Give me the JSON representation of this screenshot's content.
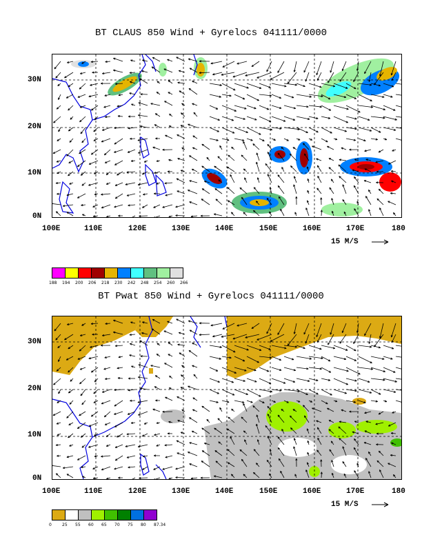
{
  "panel1": {
    "title": "BT CLAUS 850 Wind + Gyrelocs 041111/0000",
    "y_ticks": [
      "30N",
      "20N",
      "10N",
      "0N"
    ],
    "x_ticks": [
      "100E",
      "110E",
      "120E",
      "130E",
      "140E",
      "150E",
      "160E",
      "170E",
      "180"
    ],
    "scale_label": "15 M/S",
    "legend": {
      "colors": [
        "#ff00ff",
        "#ffff00",
        "#ff0000",
        "#a00000",
        "#e6b400",
        "#0080ff",
        "#40ffff",
        "#60c080",
        "#a0f0a0",
        "#e0e0e0"
      ],
      "labels": [
        "188",
        "194",
        "200",
        "206",
        "218",
        "230",
        "242",
        "248",
        "254",
        "260",
        "266"
      ]
    }
  },
  "panel2": {
    "title": "BT Pwat 850 Wind + Gyrelocs 041111/0000",
    "y_ticks": [
      "30N",
      "20N",
      "10N",
      "0N"
    ],
    "x_ticks": [
      "100E",
      "110E",
      "120E",
      "130E",
      "140E",
      "150E",
      "160E",
      "170E",
      "180"
    ],
    "scale_label": "15 M/S",
    "legend": {
      "colors": [
        "#dcaa14",
        "#ffffff",
        "#c0c0c0",
        "#a0f000",
        "#40c000",
        "#008000",
        "#0070e0",
        "#9000d0"
      ],
      "labels": [
        "0",
        "25",
        "55",
        "60",
        "65",
        "70",
        "75",
        "80",
        "87.34"
      ]
    }
  }
}
